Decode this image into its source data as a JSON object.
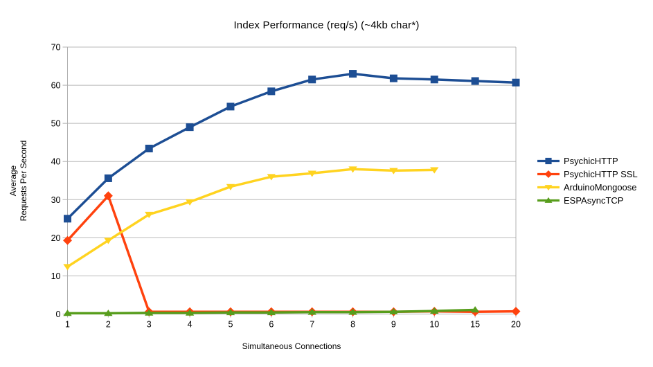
{
  "title": "Index Performance (req/s) (~4kb char*)",
  "axes": {
    "x": {
      "title": "Simultaneous Connections",
      "tick_labels": [
        "1",
        "2",
        "3",
        "4",
        "5",
        "6",
        "7",
        "8",
        "9",
        "10",
        "15",
        "20"
      ]
    },
    "y": {
      "title": "Average\nRequests Per Second",
      "tick_labels": [
        "0",
        "10",
        "20",
        "30",
        "40",
        "50",
        "60",
        "70"
      ],
      "min": 0,
      "max": 70,
      "step": 10
    }
  },
  "colors": {
    "background": "#ffffff",
    "grid": "#b9b9b9",
    "axis": "#b0b0b0",
    "text": "#000000"
  },
  "legend": {
    "position": "right",
    "items": [
      "PsychicHTTP",
      "PsychicHTTP SSL",
      "ArduinoMongoose",
      "ESPAsyncTCP"
    ]
  },
  "chart_data": {
    "type": "line",
    "title": "Index Performance (req/s) (~4kb char*)",
    "xlabel": "Simultaneous Connections",
    "ylabel": "Average Requests Per Second",
    "categories": [
      1,
      2,
      3,
      4,
      5,
      6,
      7,
      8,
      9,
      10,
      15,
      20
    ],
    "ylim": [
      0,
      70
    ],
    "grid": "horizontal-only",
    "legend_position": "right",
    "series": [
      {
        "name": "PsychicHTTP",
        "color": "#1d4e94",
        "marker": "square",
        "values": [
          25.0,
          35.6,
          43.4,
          49.0,
          54.4,
          58.4,
          61.5,
          63.0,
          61.8,
          61.5,
          61.1,
          60.7
        ]
      },
      {
        "name": "PsychicHTTP SSL",
        "color": "#ff420e",
        "marker": "diamond",
        "values": [
          19.3,
          31.0,
          0.6,
          0.6,
          0.6,
          0.6,
          0.6,
          0.6,
          0.6,
          0.7,
          0.6,
          0.7
        ]
      },
      {
        "name": "ArduinoMongoose",
        "color": "#ffd320",
        "marker": "triangle-down",
        "values": [
          12.4,
          19.3,
          26.1,
          29.4,
          33.4,
          36.0,
          36.9,
          38.0,
          37.6,
          37.8,
          null,
          null
        ]
      },
      {
        "name": "ESPAsyncTCP",
        "color": "#579d1c",
        "marker": "triangle-up",
        "values": [
          0.2,
          0.2,
          0.3,
          0.3,
          0.4,
          0.4,
          0.5,
          0.5,
          0.6,
          0.8,
          1.1,
          null
        ]
      }
    ]
  }
}
